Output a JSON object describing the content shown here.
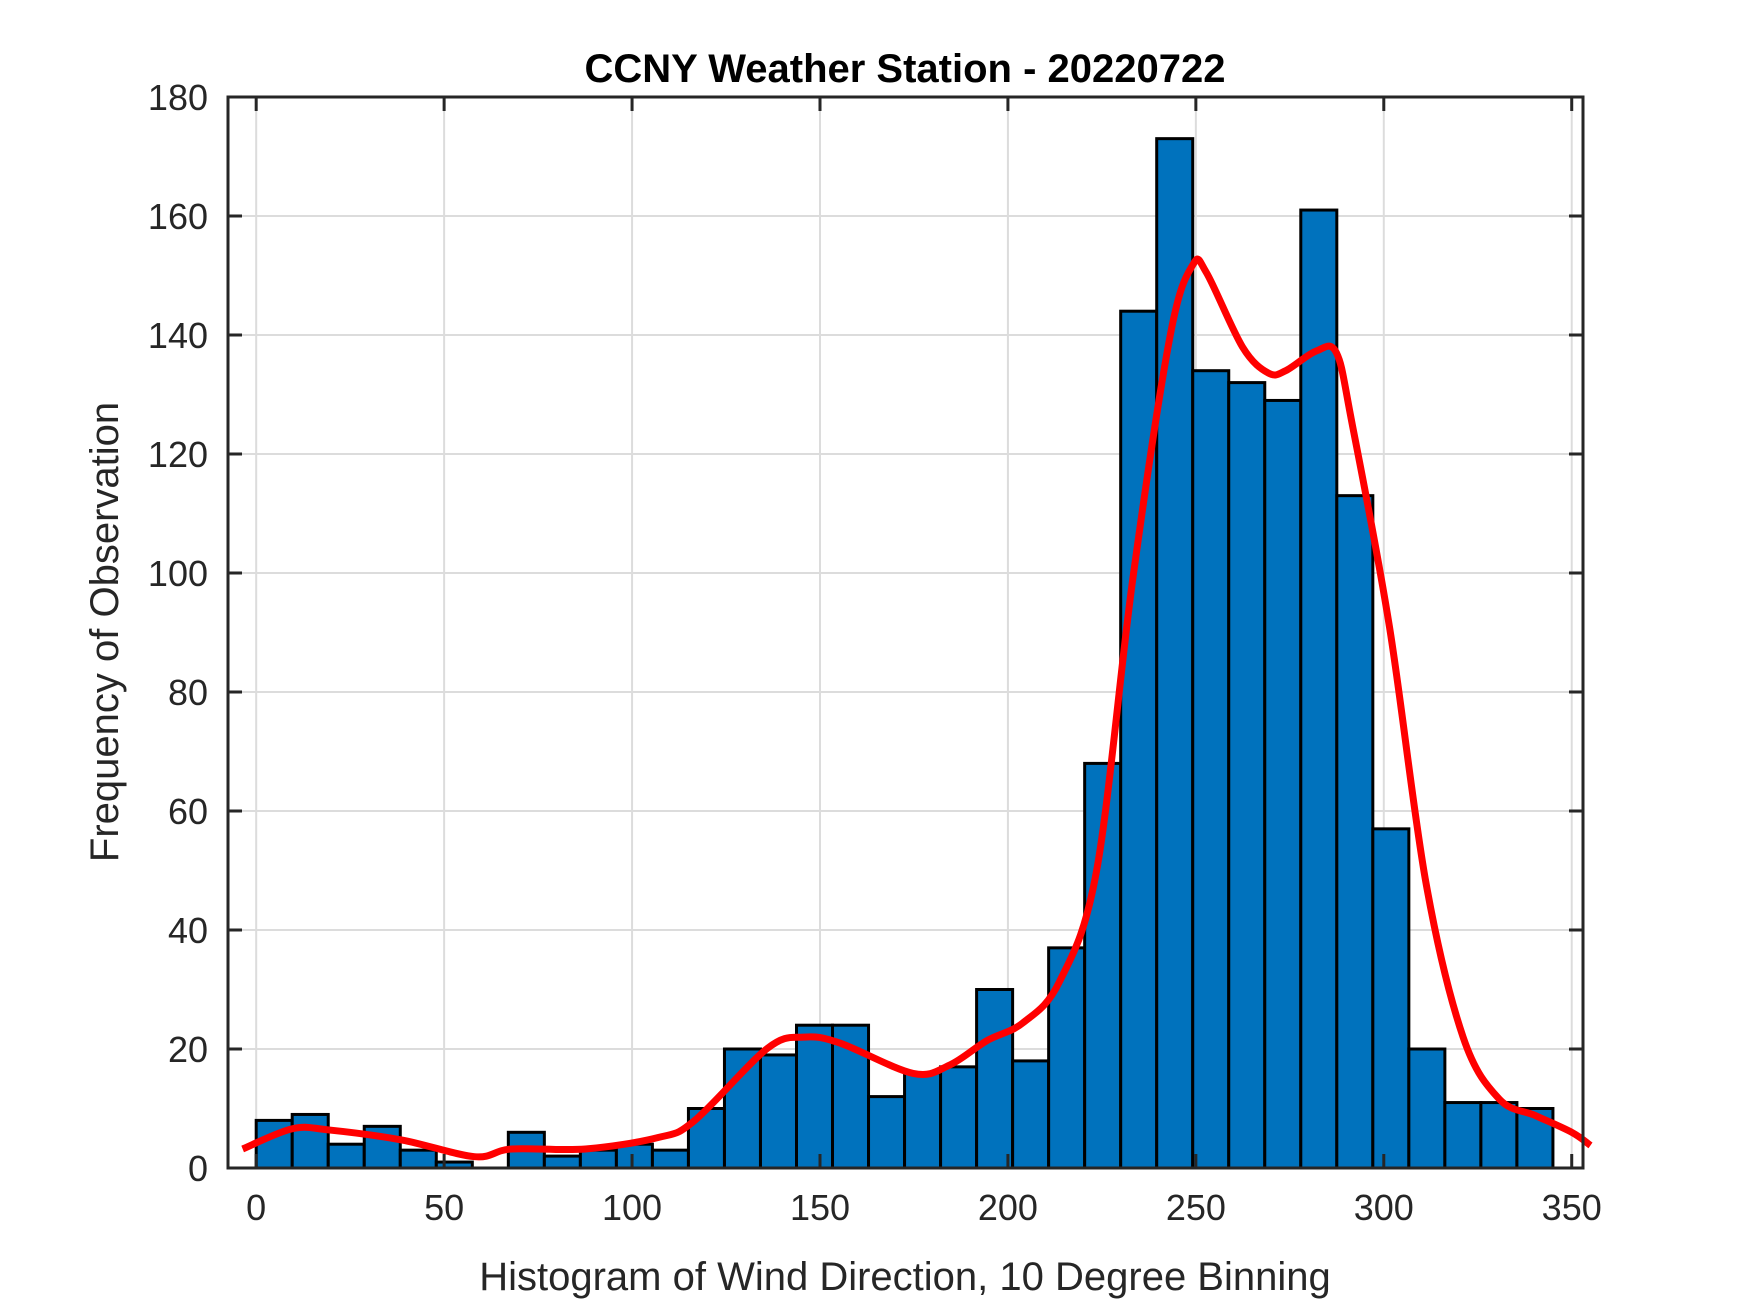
{
  "chart_data": {
    "type": "bar",
    "title": "CCNY Weather Station - 20220722",
    "xlabel": "Histogram of Wind Direction, 10 Degree Binning",
    "ylabel": "Frequency of Observation",
    "xlim": [
      -7.5,
      353
    ],
    "ylim": [
      0,
      180
    ],
    "xticks": [
      0,
      50,
      100,
      150,
      200,
      250,
      300,
      350
    ],
    "yticks": [
      0,
      20,
      40,
      60,
      80,
      100,
      120,
      140,
      160,
      180
    ],
    "grid": true,
    "bin_start": 0,
    "bin_end": 345,
    "values": [
      8,
      9,
      4,
      7,
      3,
      1,
      0,
      6,
      2,
      3,
      4,
      3,
      10,
      20,
      19,
      24,
      24,
      12,
      16,
      17,
      30,
      18,
      37,
      68,
      144,
      173,
      134,
      132,
      129,
      161,
      113,
      57,
      20,
      11,
      11,
      10
    ],
    "bar_color": "#0072BD",
    "curve": {
      "color": "#FF0000",
      "x": [
        -3.6,
        9.6,
        19.3,
        38.8,
        58.1,
        68.0,
        87.6,
        106.8,
        116.5,
        136.0,
        145.7,
        155.3,
        174.8,
        184.5,
        194.4,
        204.0,
        213.7,
        223.6,
        233.2,
        243.2,
        249.2,
        252.8,
        262.4,
        269.3,
        273.9,
        282.0,
        287.4,
        291.6,
        301.5,
        311.2,
        321.1,
        330.7,
        340.4,
        350.0,
        355.0
      ],
      "y": [
        3.2,
        6.6,
        6.4,
        4.7,
        1.9,
        3.2,
        3.2,
        5.1,
        7.9,
        20.1,
        22.0,
        21.0,
        15.9,
        17.3,
        21.4,
        24.4,
        31.3,
        50.0,
        98.9,
        140.0,
        151.8,
        150.5,
        138.0,
        133.6,
        134.0,
        137.3,
        137.0,
        125.0,
        91.0,
        48.0,
        22.0,
        11.6,
        8.8,
        6.0,
        3.8
      ]
    }
  }
}
